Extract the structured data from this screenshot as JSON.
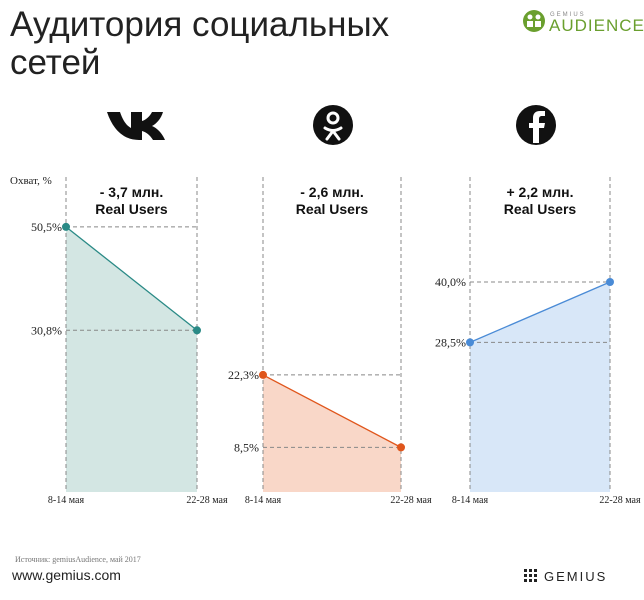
{
  "title_line1": "Аудитория социальных",
  "title_line2": "сетей",
  "brand_small": "GEMIUS",
  "brand": "AUDIENCE",
  "source": "Источник: gemiusAudience, май 2017",
  "website": "www.gemius.com",
  "footer_brand": "GEMIUS",
  "chart_data": [
    {
      "type": "area",
      "ylabel": "Охват, %",
      "annotation": "- 3,7 млн.",
      "annotation2": "Real Users",
      "categories": [
        "8-14 мая",
        "22-28 мая"
      ],
      "values": [
        50.5,
        30.8
      ],
      "value_labels": [
        "50,5%",
        "30,8%"
      ],
      "color": "#2a8a86",
      "fill": "#d3e6e3",
      "ylim": [
        0,
        60
      ]
    },
    {
      "type": "area",
      "annotation": "- 2,6 млн.",
      "annotation2": "Real Users",
      "categories": [
        "8-14 мая",
        "22-28 мая"
      ],
      "values": [
        22.3,
        8.5
      ],
      "value_labels": [
        "22,3%",
        "8,5%"
      ],
      "color": "#e0561c",
      "fill": "#f9d7c8",
      "ylim": [
        0,
        60
      ]
    },
    {
      "type": "area",
      "annotation": "+ 2,2 млн.",
      "annotation2": "Real Users",
      "categories": [
        "8-14 мая",
        "22-28 мая"
      ],
      "values": [
        28.5,
        40.0
      ],
      "value_labels": [
        "28,5%",
        "40,0%"
      ],
      "color": "#4a8bd6",
      "fill": "#d8e7f8",
      "ylim": [
        0,
        60
      ]
    }
  ]
}
